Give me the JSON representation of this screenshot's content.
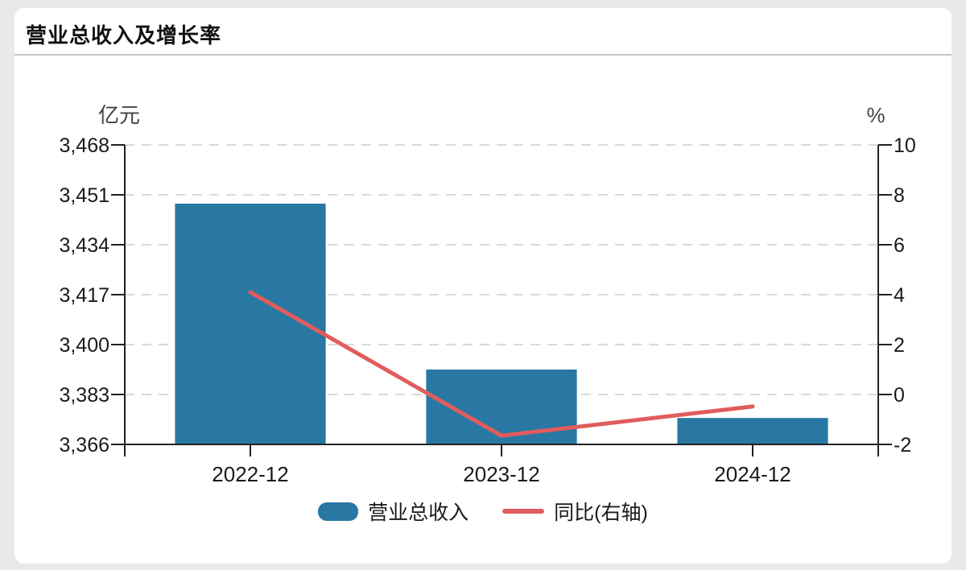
{
  "header": {
    "title": "营业总收入及增长率"
  },
  "legend": {
    "bar_label": "营业总收入",
    "line_label": "同比(右轴)"
  },
  "colors": {
    "page_bg": "#e7e9eb",
    "card_bg": "#ffffff",
    "divider": "#c2c4c6",
    "bar": "#2878a3",
    "line": "#e15c5c",
    "axis": "#222222",
    "grid": "#d9d9d9",
    "text": "#1a1a1a",
    "unit_text": "#3f4348"
  },
  "chart_data": {
    "type": "bar",
    "combo": "bar+line-dual-axis",
    "title": "营业总收入及增长率",
    "categories": [
      "2022-12",
      "2023-12",
      "2024-12"
    ],
    "series": [
      {
        "name": "营业总收入",
        "type": "bar",
        "axis": "left",
        "color": "#2878a3",
        "values": [
          3448,
          3391.5,
          3375
        ]
      },
      {
        "name": "同比(右轴)",
        "type": "line",
        "axis": "right",
        "color": "#e15c5c",
        "values": [
          4.1,
          -1.65,
          -0.48
        ]
      }
    ],
    "left_axis": {
      "unit": "亿元",
      "min": 3366,
      "max": 3468,
      "tick_step": 17,
      "tick_labels": [
        "3,468",
        "3,451",
        "3,434",
        "3,417",
        "3,400",
        "3,383",
        "3,366"
      ]
    },
    "right_axis": {
      "unit": "%",
      "min": -2,
      "max": 10,
      "tick_step": 2,
      "tick_labels": [
        "10",
        "8",
        "6",
        "4",
        "2",
        "0",
        "-2"
      ]
    },
    "grid": "horizontal-dashed",
    "legend_position": "bottom"
  }
}
